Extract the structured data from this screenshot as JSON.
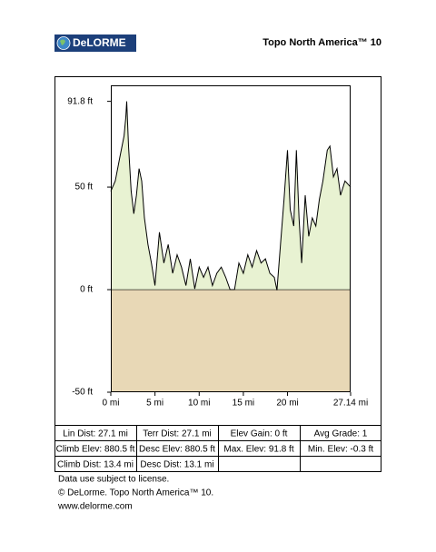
{
  "header": {
    "logo": "DeLORME",
    "title": "Topo North America™ 10"
  },
  "chart_data": {
    "type": "area",
    "x": [
      0,
      0.5,
      1,
      1.5,
      1.7,
      1.8,
      2.0,
      2.3,
      2.6,
      2.9,
      3.2,
      3.5,
      3.8,
      4.2,
      4.6,
      5.0,
      5.5,
      6.0,
      6.5,
      7.0,
      7.5,
      8.0,
      8.5,
      9.0,
      9.5,
      10.0,
      10.5,
      11.0,
      11.5,
      12.0,
      12.5,
      13.0,
      13.5,
      14.0,
      14.5,
      15.0,
      15.5,
      16.0,
      16.5,
      17.0,
      17.5,
      18.0,
      18.5,
      18.8,
      19.2,
      19.6,
      20.0,
      20.3,
      20.7,
      21.0,
      21.3,
      21.6,
      22.0,
      22.4,
      22.8,
      23.2,
      23.6,
      24.0,
      24.5,
      24.8,
      25.2,
      25.6,
      26.0,
      26.5,
      27.14
    ],
    "values": [
      48,
      53,
      64,
      75,
      84,
      91.8,
      70,
      48,
      37,
      46,
      59,
      53,
      35,
      22,
      13,
      2,
      28,
      13,
      22,
      8,
      17,
      11,
      2,
      15,
      0.4,
      11,
      6,
      11,
      2,
      8,
      11,
      6,
      0,
      0,
      13,
      8,
      17,
      11,
      19,
      13,
      15,
      8,
      6,
      -0.3,
      22,
      44,
      68,
      39,
      31,
      68,
      35,
      13,
      46,
      26,
      35,
      31,
      44,
      53,
      68,
      70,
      55,
      59,
      46,
      53,
      50
    ],
    "color": "#000000",
    "fill_color": "#e8f2d2",
    "below_color": "#e8d8b6",
    "xlim": [
      0,
      27.14
    ],
    "ylim": [
      -50,
      99.6
    ],
    "xticks": [
      {
        "value": 0,
        "label": "0 mi"
      },
      {
        "value": 5,
        "label": "5 mi"
      },
      {
        "value": 10,
        "label": "10 mi"
      },
      {
        "value": 15,
        "label": "15 mi"
      },
      {
        "value": 20,
        "label": "20 mi"
      },
      {
        "value": 27.14,
        "label": "27.14 mi"
      }
    ],
    "yticks": [
      {
        "value": -50,
        "label": "-50 ft"
      },
      {
        "value": 0,
        "label": "0 ft"
      },
      {
        "value": 50,
        "label": "50 ft"
      },
      {
        "value": 91.8,
        "label": "91.8 ft"
      }
    ]
  },
  "stats": {
    "rows": [
      [
        "Lin Dist:  27.1 mi",
        "Terr Dist:  27.1 mi",
        "Elev Gain:  0 ft",
        "Avg Grade:  1"
      ],
      [
        "Climb Elev:  880.5 ft",
        "Desc Elev:  880.5 ft",
        "Max. Elev:  91.8 ft",
        "Min. Elev:  -0.3 ft"
      ],
      [
        "Climb Dist:  13.4 mi",
        "Desc Dist:  13.1 mi"
      ]
    ]
  },
  "footer": {
    "lines": [
      "Data use subject to license.",
      "© DeLorme. Topo North America™ 10.",
      "www.delorme.com"
    ]
  }
}
